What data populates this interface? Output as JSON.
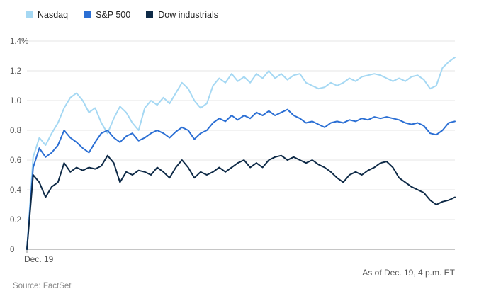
{
  "chart_data": {
    "type": "line",
    "title": "",
    "xlabel": "",
    "ylabel": "",
    "ylim": [
      0,
      1.4
    ],
    "grid": true,
    "legend_position": "top-left",
    "yticks": [
      0,
      0.2,
      0.4,
      0.6,
      0.8,
      1.0,
      1.2,
      1.4
    ],
    "ytick_labels": [
      "0",
      "0.2",
      "0.4",
      "0.6",
      "0.8",
      "1.0",
      "1.2",
      "1.4%"
    ],
    "xtick_labels": [
      "Dec. 19"
    ],
    "series": [
      {
        "name": "Nasdaq",
        "color": "#a5d8f3",
        "values": [
          0,
          0.62,
          0.75,
          0.7,
          0.78,
          0.85,
          0.95,
          1.02,
          1.05,
          1.0,
          0.92,
          0.95,
          0.85,
          0.78,
          0.88,
          0.96,
          0.92,
          0.85,
          0.8,
          0.95,
          1.0,
          0.97,
          1.02,
          0.98,
          1.05,
          1.12,
          1.08,
          1.0,
          0.95,
          0.98,
          1.1,
          1.15,
          1.12,
          1.18,
          1.13,
          1.16,
          1.12,
          1.18,
          1.15,
          1.2,
          1.15,
          1.18,
          1.14,
          1.17,
          1.18,
          1.12,
          1.1,
          1.08,
          1.09,
          1.12,
          1.1,
          1.12,
          1.15,
          1.13,
          1.16,
          1.17,
          1.18,
          1.17,
          1.15,
          1.13,
          1.15,
          1.13,
          1.16,
          1.17,
          1.14,
          1.08,
          1.1,
          1.22,
          1.26,
          1.29
        ]
      },
      {
        "name": "S&P 500",
        "color": "#2b6fd4",
        "values": [
          0,
          0.55,
          0.68,
          0.62,
          0.65,
          0.7,
          0.8,
          0.75,
          0.72,
          0.68,
          0.65,
          0.72,
          0.78,
          0.8,
          0.75,
          0.72,
          0.76,
          0.78,
          0.73,
          0.75,
          0.78,
          0.8,
          0.78,
          0.75,
          0.79,
          0.82,
          0.8,
          0.74,
          0.78,
          0.8,
          0.85,
          0.88,
          0.86,
          0.9,
          0.87,
          0.9,
          0.88,
          0.92,
          0.9,
          0.93,
          0.9,
          0.92,
          0.94,
          0.9,
          0.88,
          0.85,
          0.86,
          0.84,
          0.82,
          0.85,
          0.86,
          0.85,
          0.87,
          0.86,
          0.88,
          0.87,
          0.89,
          0.88,
          0.89,
          0.88,
          0.87,
          0.85,
          0.84,
          0.85,
          0.83,
          0.78,
          0.77,
          0.8,
          0.85,
          0.86
        ]
      },
      {
        "name": "Dow industrials",
        "color": "#0e2a47",
        "values": [
          0,
          0.5,
          0.45,
          0.35,
          0.42,
          0.45,
          0.58,
          0.52,
          0.55,
          0.53,
          0.55,
          0.54,
          0.56,
          0.63,
          0.58,
          0.45,
          0.52,
          0.5,
          0.53,
          0.52,
          0.5,
          0.55,
          0.52,
          0.48,
          0.55,
          0.6,
          0.55,
          0.48,
          0.52,
          0.5,
          0.52,
          0.55,
          0.52,
          0.55,
          0.58,
          0.6,
          0.55,
          0.58,
          0.55,
          0.6,
          0.62,
          0.63,
          0.6,
          0.62,
          0.6,
          0.58,
          0.6,
          0.57,
          0.55,
          0.52,
          0.48,
          0.45,
          0.5,
          0.52,
          0.5,
          0.53,
          0.55,
          0.58,
          0.59,
          0.55,
          0.48,
          0.45,
          0.42,
          0.4,
          0.38,
          0.33,
          0.3,
          0.32,
          0.33,
          0.35
        ]
      }
    ]
  },
  "colors": {
    "gridline": "#e5e5e5",
    "axis_line": "#8c8c8c",
    "tick_text": "#555555"
  },
  "footer": {
    "source": "Source: FactSet",
    "asof": "As of Dec. 19, 4 p.m. ET"
  }
}
